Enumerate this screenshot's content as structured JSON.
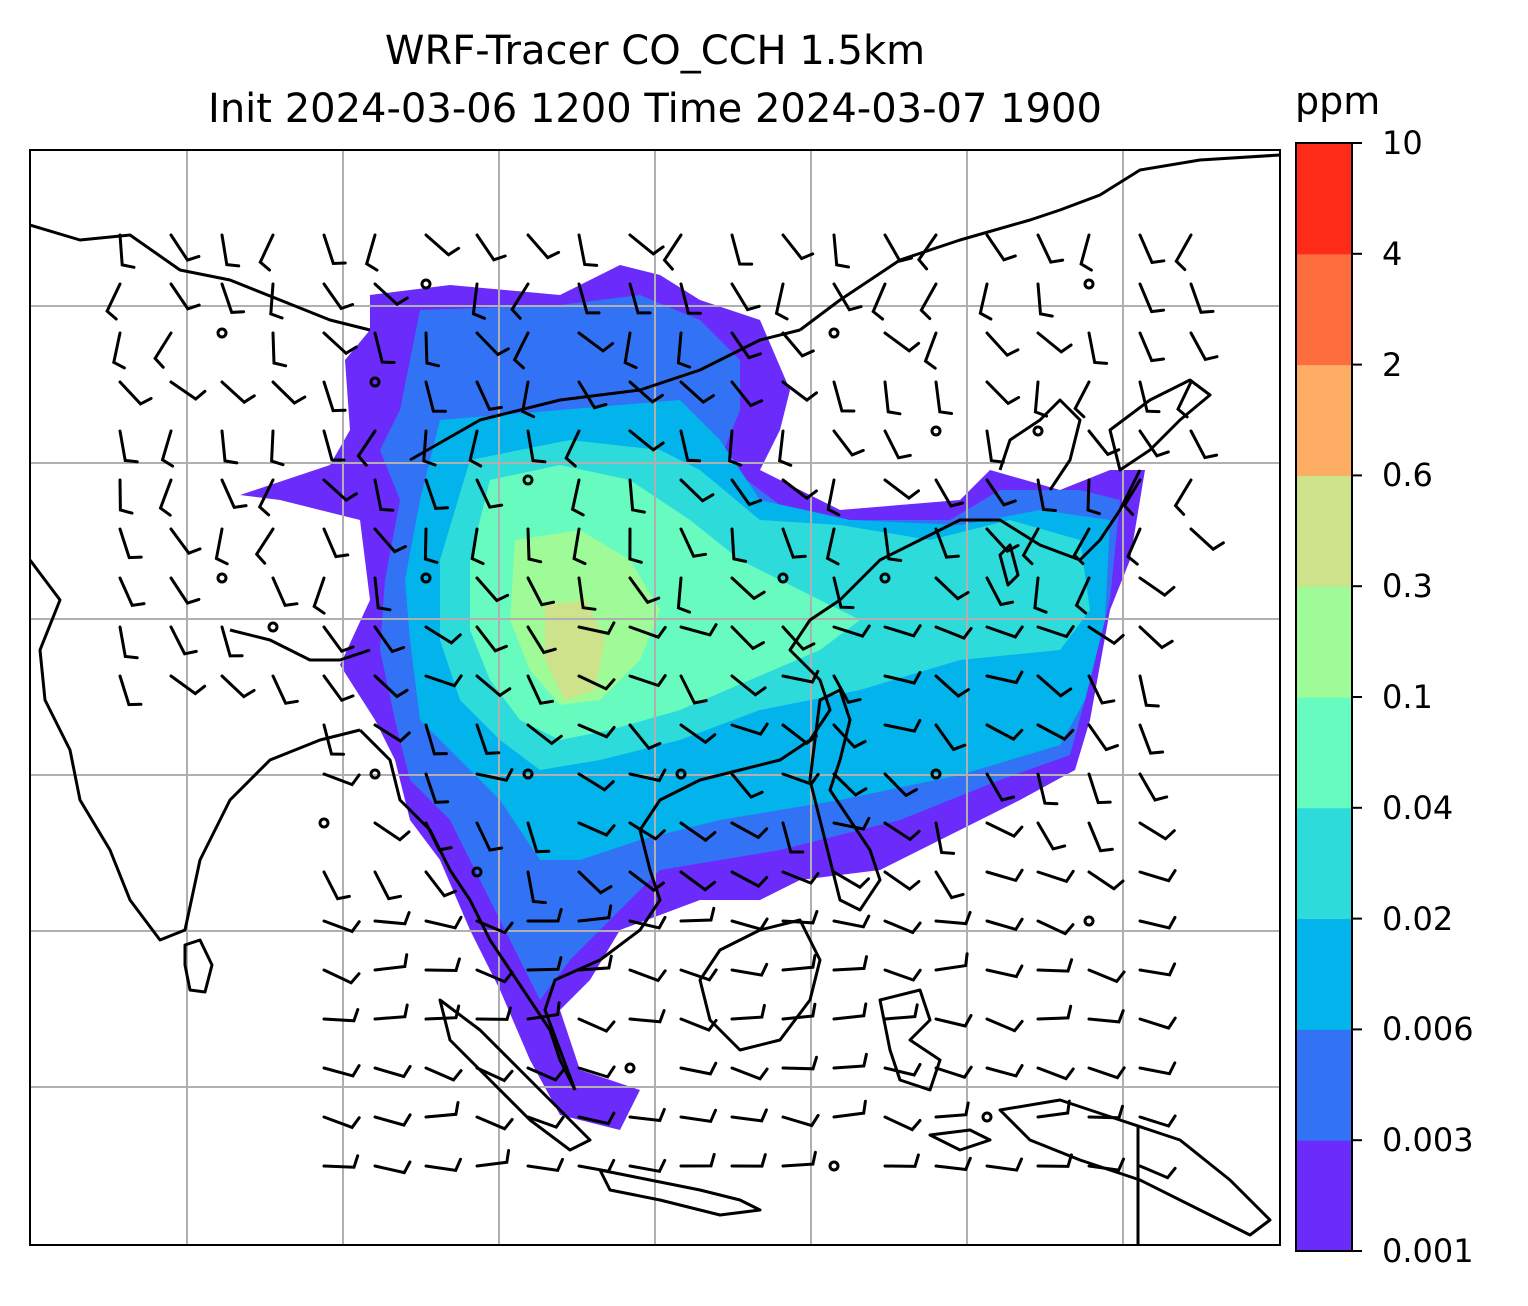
{
  "title": {
    "line1": "WRF-Tracer CO_CCH 1.5km",
    "line2": "Init 2024-03-06 1200 Time 2024-03-07 1900"
  },
  "colorbar": {
    "unit": "ppm",
    "levels": [
      "0.001",
      "0.003",
      "0.006",
      "0.02",
      "0.04",
      "0.1",
      "0.3",
      "0.6",
      "2",
      "4",
      "10"
    ],
    "colors": [
      "#6a2bfb",
      "#3273f5",
      "#03b3ec",
      "#2ddbdb",
      "#68fbbf",
      "#9efb97",
      "#cde28a",
      "#fdac63",
      "#fe6d3d",
      "#fe2b18"
    ]
  },
  "map": {
    "gridlines": true,
    "land_outline_color": "#000000",
    "grid_color": "#b0b0b0"
  }
}
